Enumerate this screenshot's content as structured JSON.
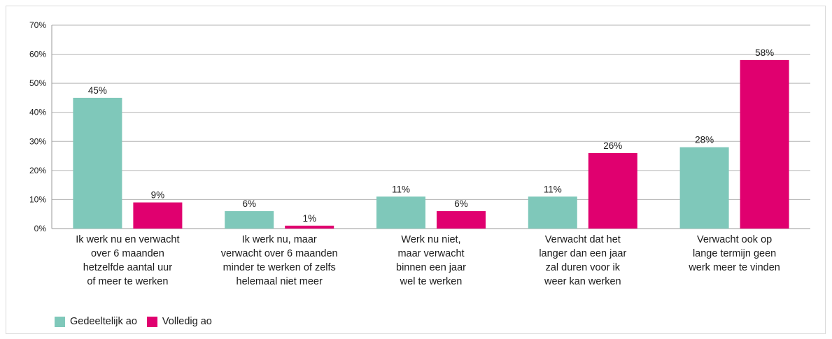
{
  "chart_data": {
    "type": "bar",
    "categories": [
      "Ik werk nu en verwacht\nover 6 maanden\nhetzelfde aantal uur\nof meer te werken",
      "Ik werk nu, maar\nverwacht over 6 maanden\nminder te werken of zelfs\nhelemaal niet meer",
      "Werk nu niet,\nmaar verwacht\nbinnen een jaar\nwel te werken",
      "Verwacht dat het\nlanger dan een jaar\nzal duren voor ik\nweer kan werken",
      "Verwacht ook op\nlange termijn geen\nwerk meer te vinden"
    ],
    "series": [
      {
        "name": "Gedeeltelijk ao",
        "color": "#7fc8ba",
        "values": [
          45,
          6,
          11,
          11,
          28
        ],
        "labels": [
          "45%",
          "6%",
          "11%",
          "11%",
          "28%"
        ]
      },
      {
        "name": "Volledig ao",
        "color": "#e0006f",
        "values": [
          9,
          1,
          6,
          26,
          58
        ],
        "labels": [
          "9%",
          "1%",
          "6%",
          "26%",
          "58%"
        ]
      }
    ],
    "ylim": [
      0,
      70
    ],
    "yticks": [
      0,
      10,
      20,
      30,
      40,
      50,
      60,
      70
    ],
    "ytick_labels": [
      "0%",
      "10%",
      "20%",
      "30%",
      "40%",
      "50%",
      "60%",
      "70%"
    ],
    "grid": true,
    "legend_position": "bottom-left"
  }
}
